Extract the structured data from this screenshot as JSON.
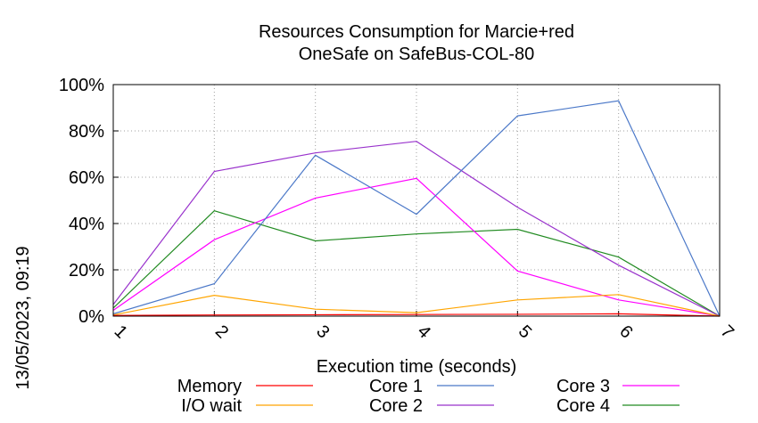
{
  "side_label": "13/05/2023, 09:19",
  "chart_data": {
    "type": "line",
    "title_lines": [
      "Resources Consumption for Marcie+red",
      "OneSafe on SafeBus-COL-80"
    ],
    "xlabel": "Execution time (seconds)",
    "ylabel": "",
    "x": [
      1,
      2,
      3,
      4,
      5,
      6,
      7
    ],
    "xlim": [
      1,
      7
    ],
    "ylim": [
      0,
      100
    ],
    "y_ticks": [
      0,
      20,
      40,
      60,
      80,
      100
    ],
    "y_tick_labels": [
      "0%",
      "20%",
      "40%",
      "60%",
      "80%",
      "100%"
    ],
    "x_tick_labels": [
      "1",
      "2",
      "3",
      "4",
      "5",
      "6",
      "7"
    ],
    "grid": true,
    "legend_placement": "bottom",
    "series": [
      {
        "name": "Memory",
        "color": "#ff0000",
        "values": [
          0.3,
          0.5,
          0.6,
          0.7,
          0.8,
          1.0,
          0
        ]
      },
      {
        "name": "I/O wait",
        "color": "#ffa500",
        "values": [
          0.5,
          9,
          3,
          1.5,
          7,
          9.3,
          0
        ]
      },
      {
        "name": "Core 1",
        "color": "#4b78c8",
        "values": [
          1,
          14,
          69.5,
          44,
          86.5,
          93,
          0
        ]
      },
      {
        "name": "Core 2",
        "color": "#9932cc",
        "values": [
          5,
          62.5,
          70.5,
          75.5,
          47,
          22,
          0
        ]
      },
      {
        "name": "Core 3",
        "color": "#ff00ff",
        "values": [
          2.5,
          33,
          51,
          59.5,
          19.5,
          7,
          0
        ]
      },
      {
        "name": "Core 4",
        "color": "#228b22",
        "values": [
          3.5,
          45.5,
          32.5,
          35.5,
          37.5,
          25.5,
          0
        ]
      }
    ]
  }
}
